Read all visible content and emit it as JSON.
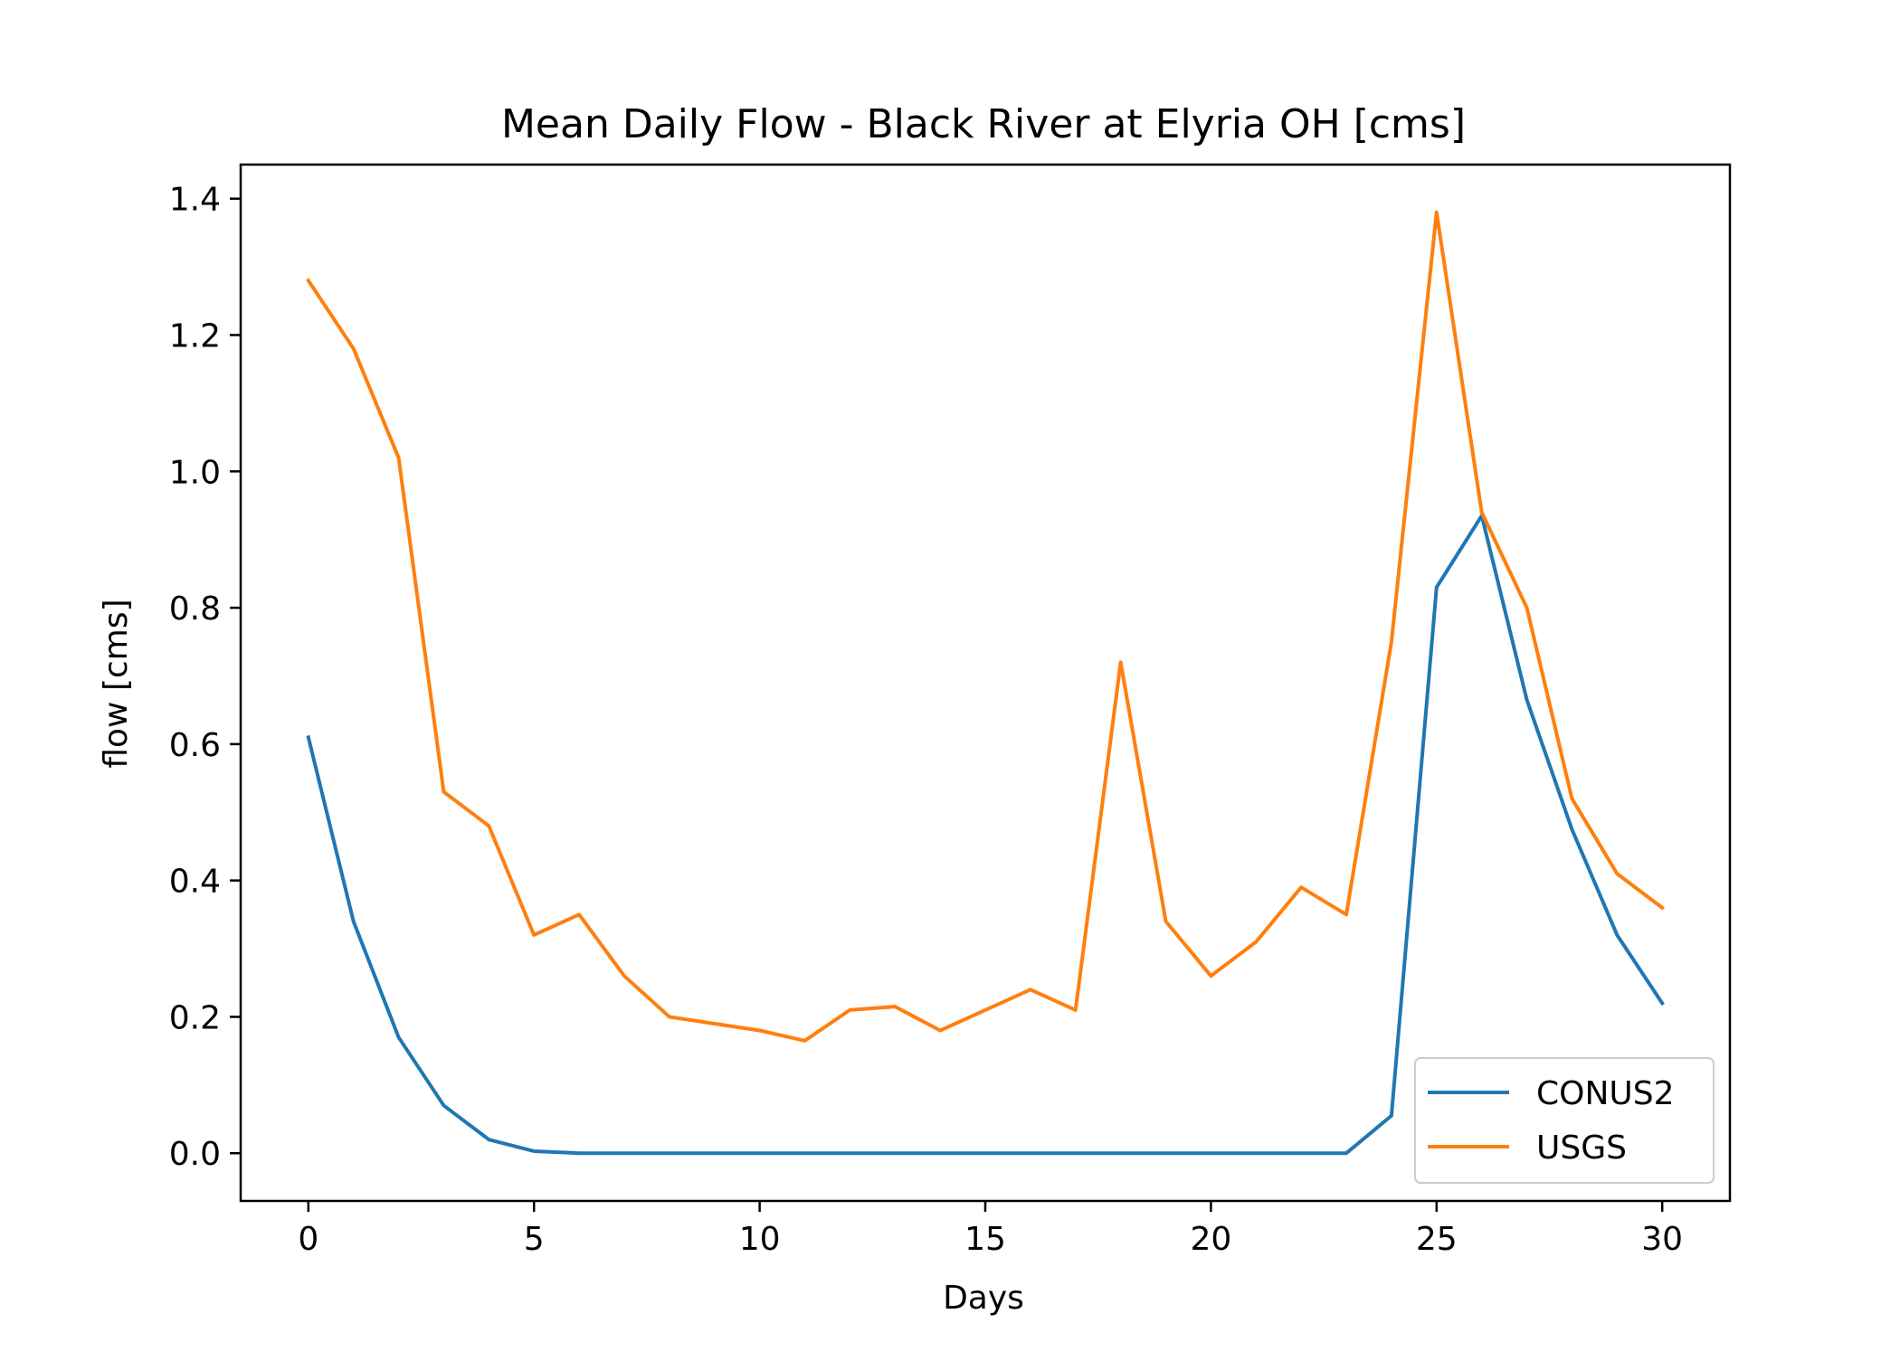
{
  "chart_data": {
    "type": "line",
    "title": "Mean Daily Flow - Black River at Elyria OH [cms]",
    "xlabel": "Days",
    "ylabel": "flow [cms]",
    "xlim": [
      -1.5,
      31.5
    ],
    "ylim": [
      -0.07,
      1.45
    ],
    "xticks": [
      0,
      5,
      10,
      15,
      20,
      25,
      30
    ],
    "yticks": [
      0.0,
      0.2,
      0.4,
      0.6,
      0.8,
      1.0,
      1.2,
      1.4
    ],
    "xtick_labels": [
      "0",
      "5",
      "10",
      "15",
      "20",
      "25",
      "30"
    ],
    "ytick_labels": [
      "0.0",
      "0.2",
      "0.4",
      "0.6",
      "0.8",
      "1.0",
      "1.2",
      "1.4"
    ],
    "grid": false,
    "legend_position": "lower-right",
    "x": [
      0,
      1,
      2,
      3,
      4,
      5,
      6,
      7,
      8,
      9,
      10,
      11,
      12,
      13,
      14,
      15,
      16,
      17,
      18,
      19,
      20,
      21,
      22,
      23,
      24,
      25,
      26,
      27,
      28,
      29,
      30
    ],
    "series": [
      {
        "name": "CONUS2",
        "color": "#1f77b4",
        "values": [
          0.61,
          0.34,
          0.17,
          0.07,
          0.02,
          0.003,
          0.0,
          0.0,
          0.0,
          0.0,
          0.0,
          0.0,
          0.0,
          0.0,
          0.0,
          0.0,
          0.0,
          0.0,
          0.0,
          0.0,
          0.0,
          0.0,
          0.0,
          0.0,
          0.055,
          0.83,
          0.935,
          0.665,
          0.475,
          0.32,
          0.22
        ]
      },
      {
        "name": "USGS",
        "color": "#ff7f0e",
        "values": [
          1.28,
          1.18,
          1.02,
          0.53,
          0.48,
          0.32,
          0.35,
          0.26,
          0.2,
          0.19,
          0.18,
          0.165,
          0.21,
          0.215,
          0.18,
          0.21,
          0.24,
          0.21,
          0.72,
          0.34,
          0.26,
          0.31,
          0.39,
          0.35,
          0.75,
          1.38,
          0.94,
          0.8,
          0.52,
          0.41,
          0.36
        ]
      }
    ]
  }
}
